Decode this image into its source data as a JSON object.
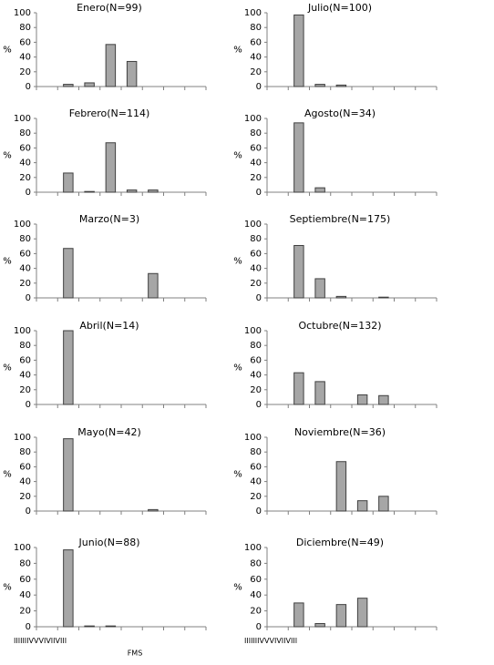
{
  "chart_data": [
    {
      "type": "bar",
      "title": "Enero(N=99)",
      "y_label": "%",
      "values": [
        0,
        3,
        5,
        57,
        34,
        0,
        0,
        0
      ],
      "ylim": [
        0,
        100
      ],
      "yticks": [
        0,
        20,
        40,
        60,
        80,
        100
      ],
      "color": "#a6a6a6"
    },
    {
      "type": "bar",
      "title": "Julio(N=100)",
      "y_label": "%",
      "values": [
        0,
        97,
        3,
        2,
        0,
        0,
        0,
        0
      ],
      "ylim": [
        0,
        100
      ],
      "yticks": [
        0,
        20,
        40,
        60,
        80,
        100
      ],
      "color": "#a6a6a6"
    },
    {
      "type": "bar",
      "title": "Febrero(N=114)",
      "y_label": "%",
      "values": [
        0,
        26,
        1,
        67,
        3,
        3,
        0,
        0
      ],
      "ylim": [
        0,
        100
      ],
      "yticks": [
        0,
        20,
        40,
        60,
        80,
        100
      ],
      "color": "#a6a6a6"
    },
    {
      "type": "bar",
      "title": "Agosto(N=34)",
      "y_label": "%",
      "values": [
        0,
        94,
        6,
        0,
        0,
        0,
        0,
        0
      ],
      "ylim": [
        0,
        100
      ],
      "yticks": [
        0,
        20,
        40,
        60,
        80,
        100
      ],
      "color": "#a6a6a6"
    },
    {
      "type": "bar",
      "title": "Marzo(N=3)",
      "y_label": "%",
      "values": [
        0,
        67,
        0,
        0,
        0,
        33,
        0,
        0
      ],
      "ylim": [
        0,
        100
      ],
      "yticks": [
        0,
        20,
        40,
        60,
        80,
        100
      ],
      "color": "#a6a6a6"
    },
    {
      "type": "bar",
      "title": "Septiembre(N=175)",
      "y_label": "%",
      "values": [
        0,
        71,
        26,
        2,
        0,
        1,
        0,
        0
      ],
      "ylim": [
        0,
        100
      ],
      "yticks": [
        0,
        20,
        40,
        60,
        80,
        100
      ],
      "color": "#a6a6a6"
    },
    {
      "type": "bar",
      "title": "Abril(N=14)",
      "y_label": "%",
      "values": [
        0,
        100,
        0,
        0,
        0,
        0,
        0,
        0
      ],
      "ylim": [
        0,
        100
      ],
      "yticks": [
        0,
        20,
        40,
        60,
        80,
        100
      ],
      "color": "#a6a6a6"
    },
    {
      "type": "bar",
      "title": "Octubre(N=132)",
      "y_label": "%",
      "values": [
        0,
        43,
        31,
        0,
        13,
        12,
        0,
        0
      ],
      "ylim": [
        0,
        100
      ],
      "yticks": [
        0,
        20,
        40,
        60,
        80,
        100
      ],
      "color": "#a6a6a6"
    },
    {
      "type": "bar",
      "title": "Mayo(N=42)",
      "y_label": "%",
      "values": [
        0,
        98,
        0,
        0,
        0,
        2,
        0,
        0
      ],
      "ylim": [
        0,
        100
      ],
      "yticks": [
        0,
        20,
        40,
        60,
        80,
        100
      ],
      "color": "#a6a6a6"
    },
    {
      "type": "bar",
      "title": "Noviembre(N=36)",
      "y_label": "%",
      "values": [
        0,
        0,
        0,
        67,
        14,
        20,
        0,
        0
      ],
      "ylim": [
        0,
        100
      ],
      "yticks": [
        0,
        20,
        40,
        60,
        80,
        100
      ],
      "color": "#a6a6a6"
    },
    {
      "type": "bar",
      "title": "Junio(N=88)",
      "y_label": "%",
      "x_label": "FMS",
      "categories": [
        "I",
        "II",
        "III",
        "IV",
        "V",
        "VI",
        "VII",
        "VIII"
      ],
      "values": [
        0,
        97,
        1,
        1,
        0,
        0,
        0,
        0
      ],
      "ylim": [
        0,
        100
      ],
      "yticks": [
        0,
        20,
        40,
        60,
        80,
        100
      ],
      "color": "#a6a6a6"
    },
    {
      "type": "bar",
      "title": "Diciembre(N=49)",
      "y_label": "%",
      "categories": [
        "I",
        "II",
        "III",
        "IV",
        "V",
        "VI",
        "VII",
        "VIII"
      ],
      "values": [
        0,
        30,
        4,
        28,
        36,
        0,
        0,
        0
      ],
      "ylim": [
        0,
        100
      ],
      "yticks": [
        0,
        20,
        40,
        60,
        80,
        100
      ],
      "color": "#a6a6a6"
    }
  ]
}
